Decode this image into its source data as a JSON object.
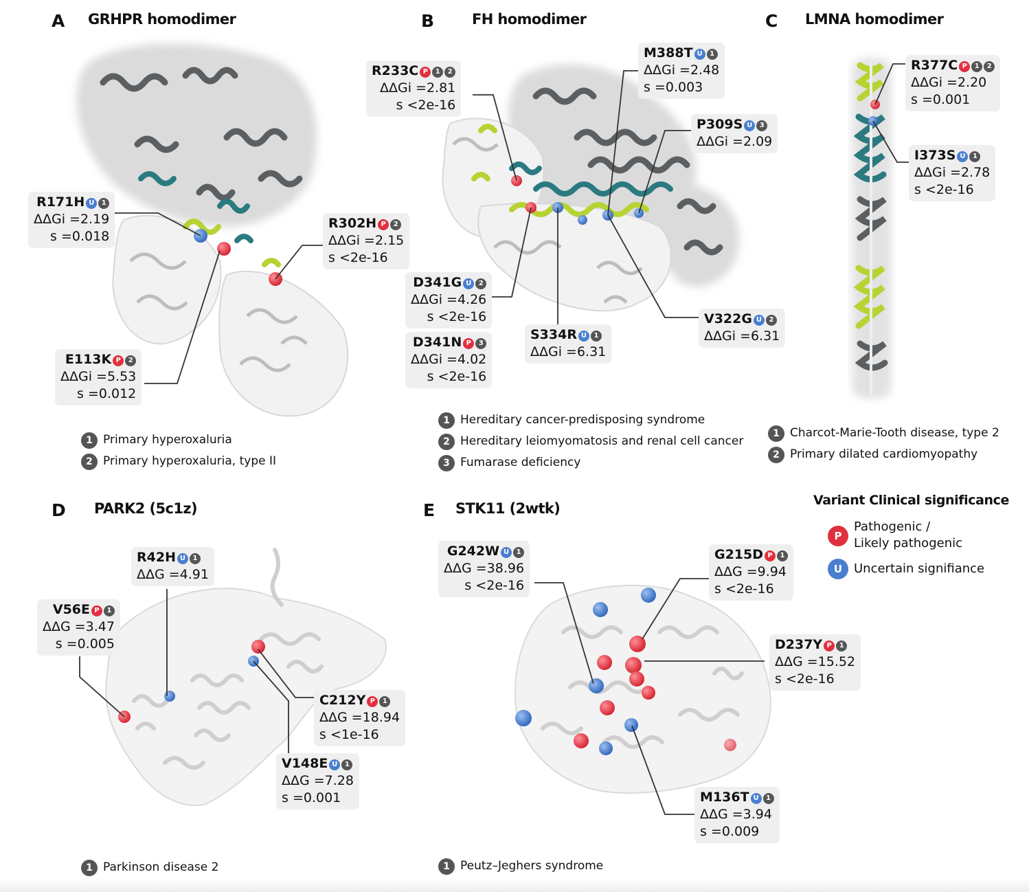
{
  "colors": {
    "pathogenic": "#e0303f",
    "uncertain": "#4a7fcf",
    "condition_badge": "#555555",
    "callout_bg": "#efefef",
    "chain_dark": "#5b5f61",
    "chain_teal": "#2a7a80",
    "chain_lime": "#b6d334"
  },
  "panels": {
    "A": {
      "letter": "A",
      "title": "GRHPR homodimer",
      "variants": [
        {
          "name": "R171H",
          "sig": "U",
          "conds": [
            "1"
          ],
          "lines": [
            "ΔΔGi =2.19",
            "s =0.018"
          ]
        },
        {
          "name": "R302H",
          "sig": "P",
          "conds": [
            "2"
          ],
          "lines": [
            "ΔΔGi =2.15",
            "s <2e-16"
          ]
        },
        {
          "name": "E113K",
          "sig": "P",
          "conds": [
            "2"
          ],
          "lines": [
            "ΔΔGi =5.53",
            "s =0.012"
          ]
        }
      ],
      "conditions": [
        {
          "num": "1",
          "label": "Primary hyperoxaluria"
        },
        {
          "num": "2",
          "label": "Primary hyperoxaluria, type II"
        }
      ]
    },
    "B": {
      "letter": "B",
      "title": "FH homodimer",
      "variants": [
        {
          "name": "R233C",
          "sig": "P",
          "conds": [
            "1",
            "2"
          ],
          "lines": [
            "ΔΔGi =2.81",
            "s <2e-16"
          ]
        },
        {
          "name": "M388T",
          "sig": "U",
          "conds": [
            "1"
          ],
          "lines": [
            "ΔΔGi =2.48",
            "s =0.003"
          ]
        },
        {
          "name": "P309S",
          "sig": "U",
          "conds": [
            "3"
          ],
          "lines": [
            "ΔΔGi =2.09"
          ]
        },
        {
          "name": "D341G",
          "sig": "U",
          "conds": [
            "2"
          ],
          "lines": [
            "ΔΔGi =4.26",
            "s <2e-16"
          ]
        },
        {
          "name": "D341N",
          "sig": "P",
          "conds": [
            "3"
          ],
          "lines": [
            "ΔΔGi =4.02",
            "s <2e-16"
          ]
        },
        {
          "name": "S334R",
          "sig": "U",
          "conds": [
            "1"
          ],
          "lines": [
            "ΔΔGi =6.31"
          ]
        },
        {
          "name": "V322G",
          "sig": "U",
          "conds": [
            "2"
          ],
          "lines": [
            "ΔΔGi =6.31"
          ]
        }
      ],
      "conditions": [
        {
          "num": "1",
          "label": "Hereditary cancer-predisposing syndrome"
        },
        {
          "num": "2",
          "label": "Hereditary leiomyomatosis and renal cell cancer"
        },
        {
          "num": "3",
          "label": "Fumarase deficiency"
        }
      ]
    },
    "C": {
      "letter": "C",
      "title": "LMNA homodimer",
      "variants": [
        {
          "name": "R377C",
          "sig": "P",
          "conds": [
            "1",
            "2"
          ],
          "lines": [
            "ΔΔGi =2.20",
            "s =0.001"
          ]
        },
        {
          "name": "I373S",
          "sig": "U",
          "conds": [
            "1"
          ],
          "lines": [
            "ΔΔGi =2.78",
            "s <2e-16"
          ]
        }
      ],
      "conditions": [
        {
          "num": "1",
          "label": "Charcot-Marie-Tooth disease, type 2"
        },
        {
          "num": "2",
          "label": "Primary dilated cardiomyopathy"
        }
      ]
    },
    "D": {
      "letter": "D",
      "title": "PARK2 (5c1z)",
      "variants": [
        {
          "name": "R42H",
          "sig": "U",
          "conds": [
            "1"
          ],
          "lines": [
            "ΔΔG =4.91"
          ]
        },
        {
          "name": "V56E",
          "sig": "P",
          "conds": [
            "1"
          ],
          "lines": [
            "ΔΔG =3.47",
            "s =0.005"
          ]
        },
        {
          "name": "C212Y",
          "sig": "P",
          "conds": [
            "1"
          ],
          "lines": [
            "ΔΔG =18.94",
            "s <1e-16"
          ]
        },
        {
          "name": "V148E",
          "sig": "U",
          "conds": [
            "1"
          ],
          "lines": [
            "ΔΔG =7.28",
            "s =0.001"
          ]
        }
      ],
      "conditions": [
        {
          "num": "1",
          "label": "Parkinson disease 2"
        }
      ]
    },
    "E": {
      "letter": "E",
      "title": "STK11 (2wtk)",
      "variants": [
        {
          "name": "G242W",
          "sig": "U",
          "conds": [
            "1"
          ],
          "lines": [
            "ΔΔG =38.96",
            "s <2e-16"
          ]
        },
        {
          "name": "G215D",
          "sig": "P",
          "conds": [
            "1"
          ],
          "lines": [
            "ΔΔG =9.94",
            "s <2e-16"
          ]
        },
        {
          "name": "D237Y",
          "sig": "P",
          "conds": [
            "1"
          ],
          "lines": [
            "ΔΔG =15.52",
            "s <2e-16"
          ]
        },
        {
          "name": "M136T",
          "sig": "U",
          "conds": [
            "1"
          ],
          "lines": [
            "ΔΔG =3.94",
            "s =0.009"
          ]
        }
      ],
      "conditions": [
        {
          "num": "1",
          "label": "Peutz–Jeghers syndrome"
        }
      ]
    }
  },
  "significance_legend": {
    "title": "Variant Clinical significance",
    "items": [
      {
        "letter": "P",
        "label": "Pathogenic /\nLikely pathogenic"
      },
      {
        "letter": "U",
        "label": "Uncertain signifiance"
      }
    ]
  }
}
